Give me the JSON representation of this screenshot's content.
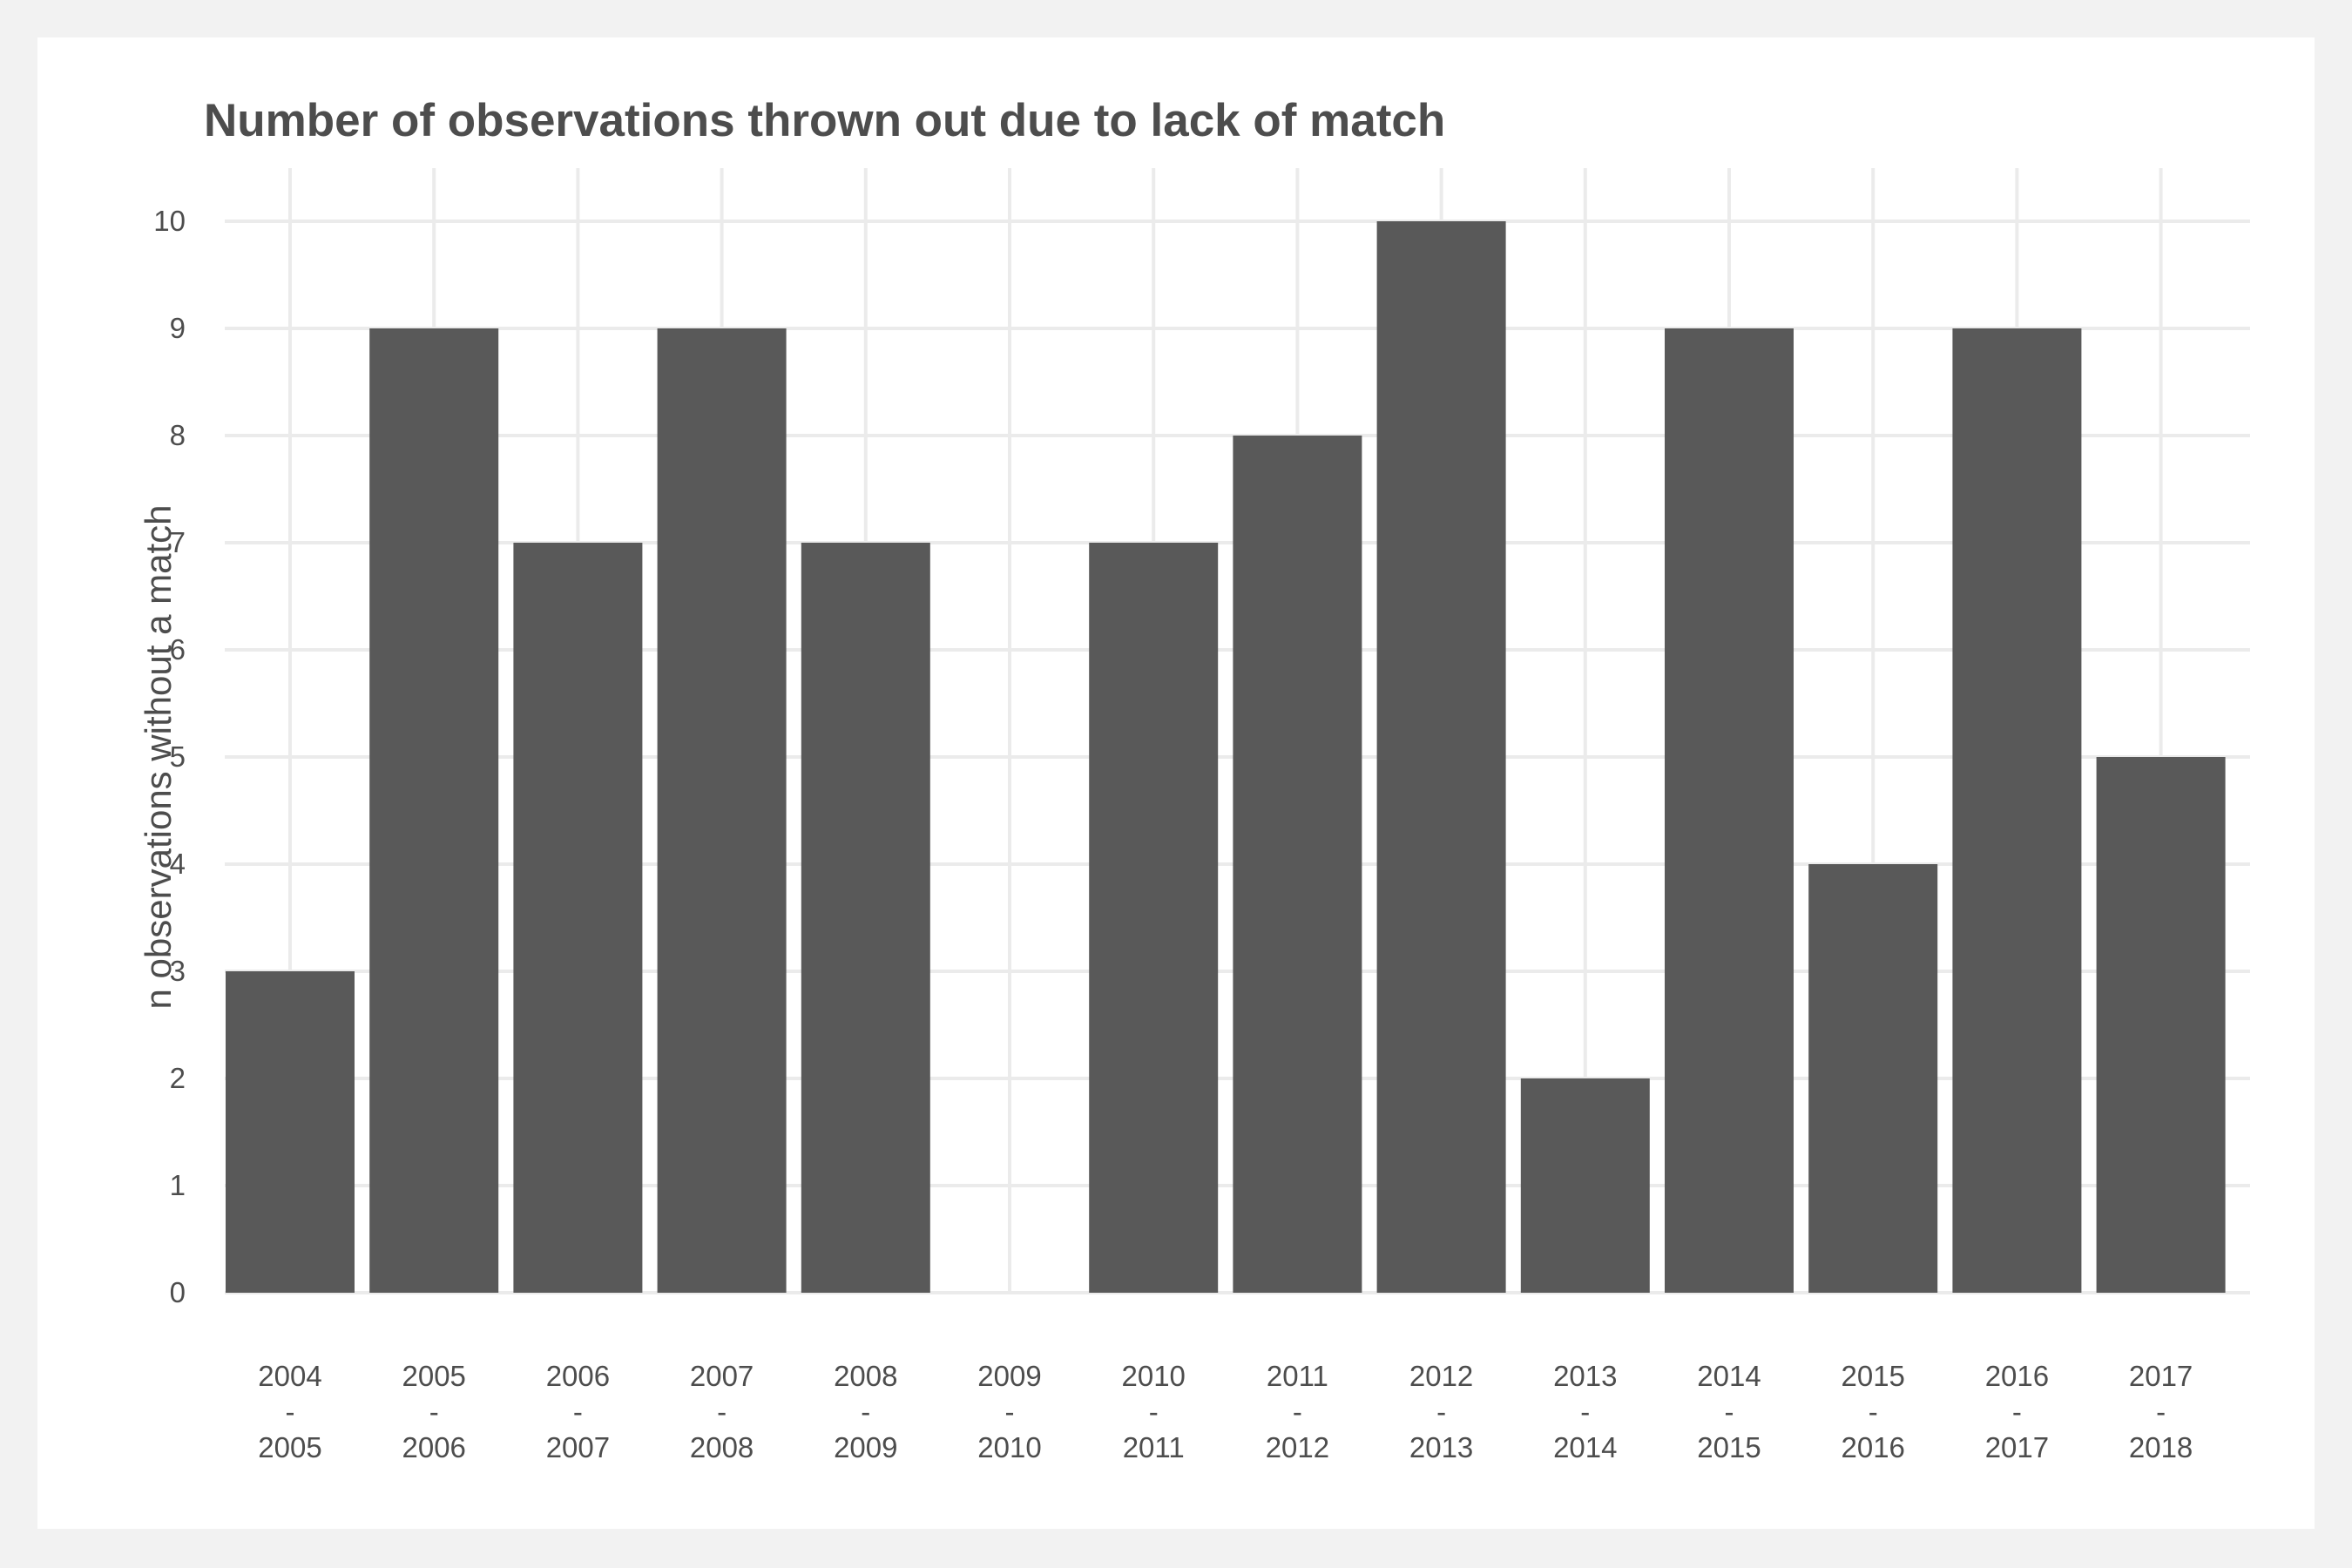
{
  "chart_data": {
    "type": "bar",
    "title": "Number of observations thrown out due to lack of match",
    "xlabel": "",
    "ylabel": "n observations without a match",
    "categories": [
      [
        "2004",
        "-",
        "2005"
      ],
      [
        "2005",
        "-",
        "2006"
      ],
      [
        "2006",
        "-",
        "2007"
      ],
      [
        "2007",
        "-",
        "2008"
      ],
      [
        "2008",
        "-",
        "2009"
      ],
      [
        "2009",
        "-",
        "2010"
      ],
      [
        "2010",
        "-",
        "2011"
      ],
      [
        "2011",
        "-",
        "2012"
      ],
      [
        "2012",
        "-",
        "2013"
      ],
      [
        "2013",
        "-",
        "2014"
      ],
      [
        "2014",
        "-",
        "2015"
      ],
      [
        "2015",
        "-",
        "2016"
      ],
      [
        "2016",
        "-",
        "2017"
      ],
      [
        "2017",
        "-",
        "2018"
      ]
    ],
    "values": [
      3,
      9,
      7,
      9,
      7,
      0,
      7,
      8,
      10,
      2,
      9,
      4,
      9,
      5
    ],
    "ylim": [
      0,
      10
    ],
    "yticks": [
      0,
      1,
      2,
      3,
      4,
      5,
      6,
      7,
      8,
      9,
      10
    ],
    "grid": true,
    "colors": {
      "bar": "#595959",
      "grid": "#ebebeb",
      "text": "#4d4d4d",
      "panel": "#ffffff",
      "background": "#f2f2f2"
    }
  }
}
